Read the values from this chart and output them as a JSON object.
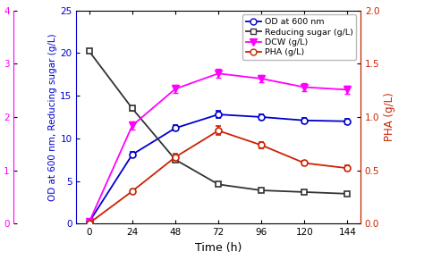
{
  "time": [
    0,
    24,
    48,
    72,
    96,
    120,
    144
  ],
  "OD_values": [
    0.2,
    8.1,
    11.2,
    12.8,
    12.5,
    12.1,
    12.0
  ],
  "OD_errors": [
    0.1,
    0.3,
    0.3,
    0.4,
    0.3,
    0.3,
    0.3
  ],
  "RS_values": [
    20.2,
    13.5,
    7.5,
    4.6,
    3.9,
    3.7,
    3.5
  ],
  "RS_errors": [
    0.2,
    0.3,
    0.2,
    0.2,
    0.2,
    0.2,
    0.2
  ],
  "DCW_values": [
    0.2,
    11.5,
    15.8,
    17.6,
    17.0,
    16.0,
    15.7
  ],
  "DCW_errors": [
    0.1,
    0.45,
    0.5,
    0.5,
    0.45,
    0.5,
    0.5
  ],
  "PHA_values": [
    0.05,
    3.8,
    7.8,
    10.9,
    9.2,
    7.1,
    6.5
  ],
  "PHA_errors": [
    0.05,
    0.2,
    0.35,
    0.5,
    0.4,
    0.3,
    0.3
  ],
  "OD_color": "#0000cc",
  "RS_color": "#333333",
  "DCW_color": "#ff00ff",
  "PHA_color": "#cc2200",
  "main_ylim": [
    0,
    25
  ],
  "main_yticks": [
    0,
    5,
    10,
    15,
    20,
    25
  ],
  "dcw_ylim": [
    0,
    4
  ],
  "dcw_yticks": [
    0,
    1,
    2,
    3,
    4
  ],
  "pha_ylim": [
    0.0,
    2.0
  ],
  "pha_yticks": [
    0.0,
    0.5,
    1.0,
    1.5,
    2.0
  ],
  "xticks": [
    0,
    24,
    48,
    72,
    96,
    120,
    144
  ],
  "main_ylabel": "OD at 600 nm, Reducing sugar (g/L)",
  "dcw_ylabel": "DCW (g/L)",
  "pha_ylabel": "PHA (g/L)",
  "xlabel": "Time (h)",
  "legend_labels": [
    "OD at 600 nm",
    "Reducing sugar (g/L)",
    "DCW (g/L)",
    "PHA (g/L)"
  ]
}
